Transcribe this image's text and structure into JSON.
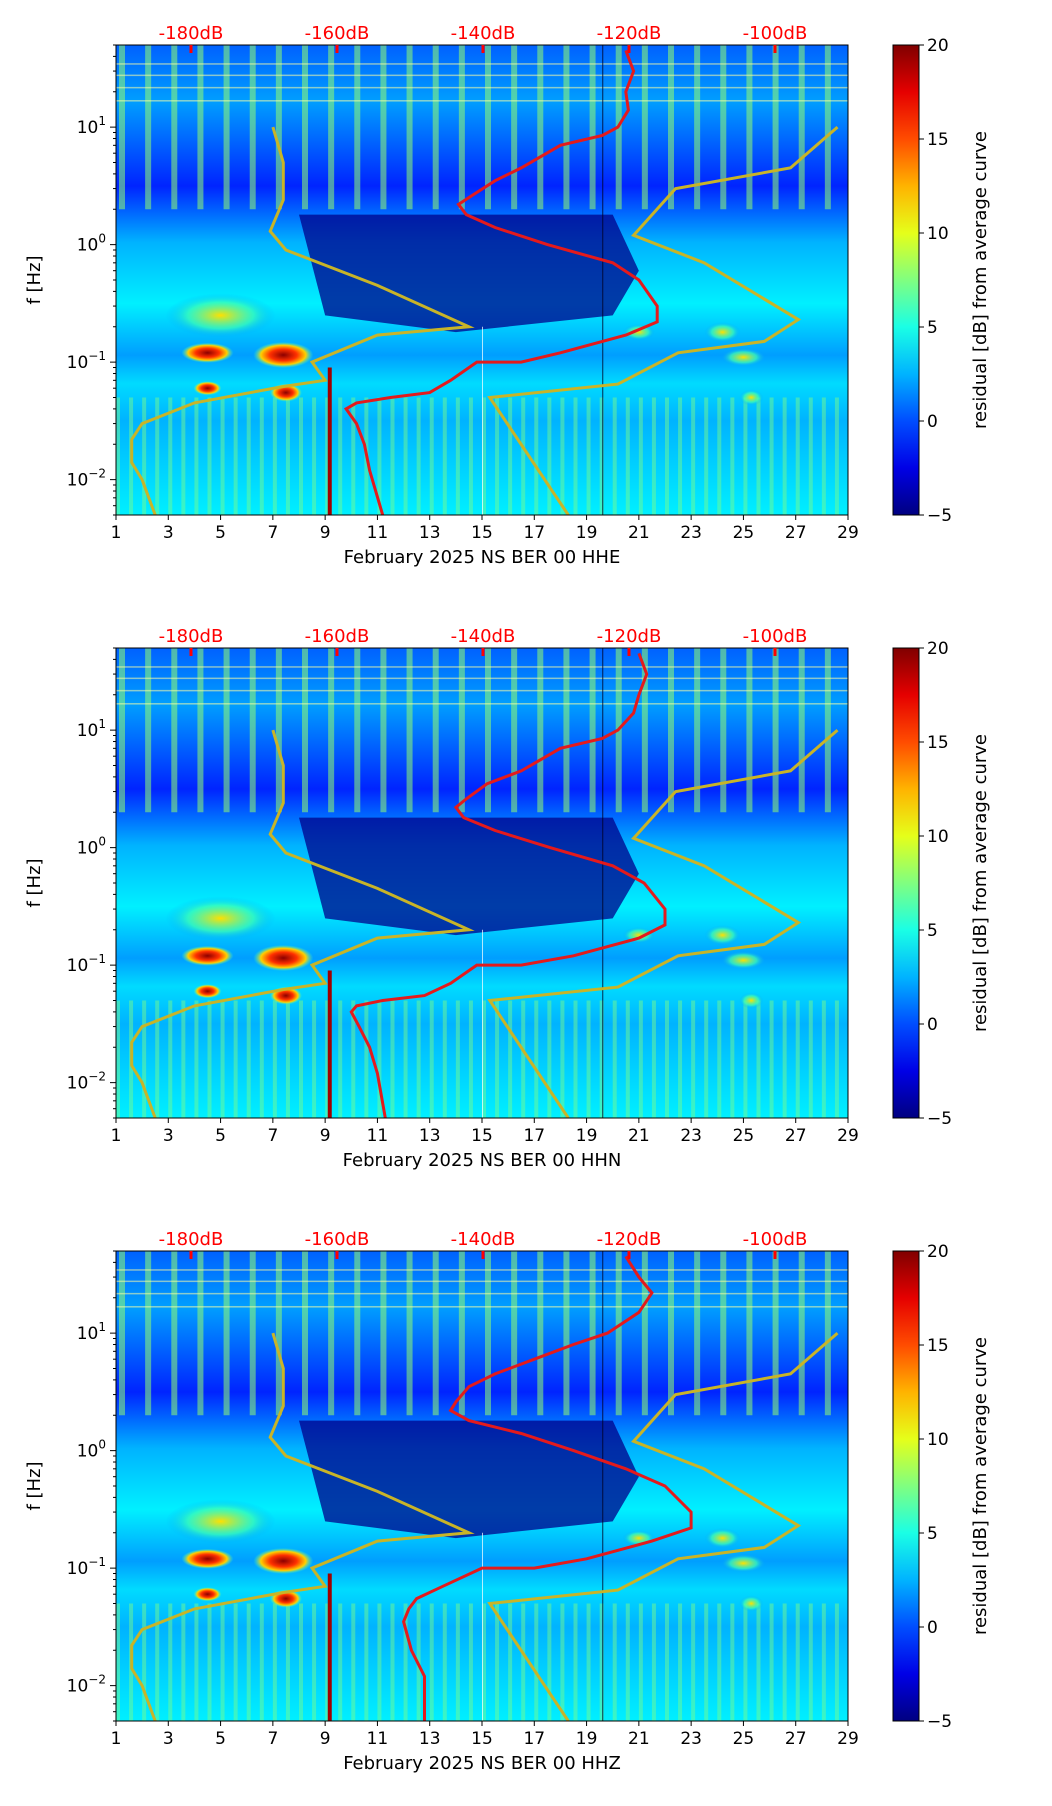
{
  "chart_data": [
    {
      "type": "heatmap",
      "xlabel": "February 2025 NS BER 00 HHE",
      "ylabel": "f [Hz]",
      "x_ticks": [
        "1",
        "3",
        "5",
        "7",
        "9",
        "11",
        "13",
        "15",
        "17",
        "19",
        "21",
        "23",
        "25",
        "27",
        "29"
      ],
      "xlim": [
        1,
        29
      ],
      "ylim": [
        0.005,
        50
      ],
      "yscale": "log",
      "y_ticks": [
        {
          "value": 0.01,
          "base": "10",
          "exp": "−2"
        },
        {
          "value": 0.1,
          "base": "10",
          "exp": "−1"
        },
        {
          "value": 1,
          "base": "10",
          "exp": "0"
        },
        {
          "value": 10,
          "base": "10",
          "exp": "1"
        }
      ],
      "top_ticks": [
        "-180dB",
        "-160dB",
        "-140dB",
        "-120dB",
        "-100dB"
      ],
      "top_ticks_color": "#ff0000",
      "colorbar": {
        "label": "residual [dB] from average curve",
        "range": [
          -5,
          20
        ],
        "ticks": [
          "20",
          "15",
          "10",
          "5",
          "0",
          "−5"
        ],
        "colormap": "jet"
      },
      "noise_model_color": "#c8b428",
      "average_curve_color": "#e41a1c",
      "noise_model_curve": [
        [
          7.0,
          10
        ],
        [
          7.4,
          5
        ],
        [
          7.4,
          2.4
        ],
        [
          6.9,
          1.3
        ],
        [
          7.5,
          0.9
        ],
        [
          11,
          0.45
        ],
        [
          14.5,
          0.2
        ],
        [
          11,
          0.17
        ],
        [
          8.5,
          0.1
        ],
        [
          9,
          0.07
        ],
        [
          7.4,
          0.062
        ],
        [
          4,
          0.045
        ],
        [
          2,
          0.03
        ],
        [
          1.6,
          0.022
        ],
        [
          1.6,
          0.014
        ],
        [
          2,
          0.01
        ],
        [
          2.5,
          0.005
        ]
      ],
      "noise_model_high": [
        [
          28.6,
          10
        ],
        [
          26.8,
          4.5
        ],
        [
          22.4,
          3
        ],
        [
          20.8,
          1.2
        ],
        [
          23.5,
          0.7
        ],
        [
          27.1,
          0.23
        ],
        [
          25.8,
          0.15
        ],
        [
          22.5,
          0.12
        ],
        [
          20.2,
          0.065
        ],
        [
          15.3,
          0.05
        ],
        [
          18.3,
          0.005
        ]
      ],
      "average_curve": [
        [
          20.5,
          45
        ],
        [
          20.8,
          30
        ],
        [
          20.5,
          20
        ],
        [
          20.6,
          14
        ],
        [
          20.2,
          10
        ],
        [
          19.6,
          8.5
        ],
        [
          18,
          7
        ],
        [
          16.5,
          4.5
        ],
        [
          15.5,
          3.5
        ],
        [
          14.6,
          2.6
        ],
        [
          14.1,
          2.2
        ],
        [
          14.4,
          1.8
        ],
        [
          15.5,
          1.4
        ],
        [
          17.5,
          1.0
        ],
        [
          20,
          0.7
        ],
        [
          21,
          0.5
        ],
        [
          21.7,
          0.3
        ],
        [
          21.7,
          0.22
        ],
        [
          20.5,
          0.17
        ],
        [
          18,
          0.12
        ],
        [
          16.5,
          0.1
        ],
        [
          14.8,
          0.1
        ],
        [
          13.8,
          0.07
        ],
        [
          13,
          0.055
        ],
        [
          11.5,
          0.05
        ],
        [
          10.2,
          0.045
        ],
        [
          9.8,
          0.04
        ],
        [
          10.2,
          0.03
        ],
        [
          10.5,
          0.02
        ],
        [
          10.7,
          0.012
        ],
        [
          11.2,
          0.005
        ]
      ]
    },
    {
      "type": "heatmap",
      "xlabel": "February 2025 NS BER 00 HHN",
      "ylabel": "f [Hz]",
      "x_ticks": [
        "1",
        "3",
        "5",
        "7",
        "9",
        "11",
        "13",
        "15",
        "17",
        "19",
        "21",
        "23",
        "25",
        "27",
        "29"
      ],
      "xlim": [
        1,
        29
      ],
      "ylim": [
        0.005,
        50
      ],
      "yscale": "log",
      "y_ticks": [
        {
          "value": 0.01,
          "base": "10",
          "exp": "−2"
        },
        {
          "value": 0.1,
          "base": "10",
          "exp": "−1"
        },
        {
          "value": 1,
          "base": "10",
          "exp": "0"
        },
        {
          "value": 10,
          "base": "10",
          "exp": "1"
        }
      ],
      "top_ticks": [
        "-180dB",
        "-160dB",
        "-140dB",
        "-120dB",
        "-100dB"
      ],
      "top_ticks_color": "#ff0000",
      "colorbar": {
        "label": "residual [dB] from average curve",
        "range": [
          -5,
          20
        ],
        "ticks": [
          "20",
          "15",
          "10",
          "5",
          "0",
          "−5"
        ],
        "colormap": "jet"
      },
      "noise_model_color": "#c8b428",
      "average_curve_color": "#e41a1c",
      "noise_model_curve": [
        [
          7.0,
          10
        ],
        [
          7.4,
          5
        ],
        [
          7.4,
          2.4
        ],
        [
          6.9,
          1.3
        ],
        [
          7.5,
          0.9
        ],
        [
          11,
          0.45
        ],
        [
          14.5,
          0.2
        ],
        [
          11,
          0.17
        ],
        [
          8.5,
          0.1
        ],
        [
          9,
          0.07
        ],
        [
          7.4,
          0.062
        ],
        [
          4,
          0.045
        ],
        [
          2,
          0.03
        ],
        [
          1.6,
          0.022
        ],
        [
          1.6,
          0.014
        ],
        [
          2,
          0.01
        ],
        [
          2.5,
          0.005
        ]
      ],
      "noise_model_high": [
        [
          28.6,
          10
        ],
        [
          26.8,
          4.5
        ],
        [
          22.4,
          3
        ],
        [
          20.8,
          1.2
        ],
        [
          23.5,
          0.7
        ],
        [
          27.1,
          0.23
        ],
        [
          25.8,
          0.15
        ],
        [
          22.5,
          0.12
        ],
        [
          20.2,
          0.065
        ],
        [
          15.3,
          0.05
        ],
        [
          18.3,
          0.005
        ]
      ],
      "average_curve": [
        [
          21,
          45
        ],
        [
          21.3,
          30
        ],
        [
          21,
          20
        ],
        [
          20.8,
          14
        ],
        [
          20.2,
          10
        ],
        [
          19.6,
          8.5
        ],
        [
          18,
          7
        ],
        [
          16.5,
          4.5
        ],
        [
          15.2,
          3.5
        ],
        [
          14.4,
          2.6
        ],
        [
          14,
          2.2
        ],
        [
          14.3,
          1.8
        ],
        [
          15.5,
          1.4
        ],
        [
          17.6,
          1.0
        ],
        [
          20,
          0.7
        ],
        [
          21.2,
          0.5
        ],
        [
          22,
          0.3
        ],
        [
          22,
          0.22
        ],
        [
          21,
          0.17
        ],
        [
          18.5,
          0.12
        ],
        [
          16.5,
          0.1
        ],
        [
          14.8,
          0.1
        ],
        [
          13.8,
          0.07
        ],
        [
          12.8,
          0.055
        ],
        [
          11.2,
          0.05
        ],
        [
          10.2,
          0.045
        ],
        [
          10,
          0.04
        ],
        [
          10.3,
          0.03
        ],
        [
          10.7,
          0.02
        ],
        [
          11,
          0.012
        ],
        [
          11.3,
          0.005
        ]
      ]
    },
    {
      "type": "heatmap",
      "xlabel": "February 2025 NS BER 00 HHZ",
      "ylabel": "f [Hz]",
      "x_ticks": [
        "1",
        "3",
        "5",
        "7",
        "9",
        "11",
        "13",
        "15",
        "17",
        "19",
        "21",
        "23",
        "25",
        "27",
        "29"
      ],
      "xlim": [
        1,
        29
      ],
      "ylim": [
        0.005,
        50
      ],
      "yscale": "log",
      "y_ticks": [
        {
          "value": 0.01,
          "base": "10",
          "exp": "−2"
        },
        {
          "value": 0.1,
          "base": "10",
          "exp": "−1"
        },
        {
          "value": 1,
          "base": "10",
          "exp": "0"
        },
        {
          "value": 10,
          "base": "10",
          "exp": "1"
        }
      ],
      "top_ticks": [
        "-180dB",
        "-160dB",
        "-140dB",
        "-120dB",
        "-100dB"
      ],
      "top_ticks_color": "#ff0000",
      "colorbar": {
        "label": "residual [dB] from average curve",
        "range": [
          -5,
          20
        ],
        "ticks": [
          "20",
          "15",
          "10",
          "5",
          "0",
          "−5"
        ],
        "colormap": "jet"
      },
      "noise_model_color": "#c8b428",
      "average_curve_color": "#e41a1c",
      "noise_model_curve": [
        [
          7.0,
          10
        ],
        [
          7.4,
          5
        ],
        [
          7.4,
          2.4
        ],
        [
          6.9,
          1.3
        ],
        [
          7.5,
          0.9
        ],
        [
          11,
          0.45
        ],
        [
          14.5,
          0.2
        ],
        [
          11,
          0.17
        ],
        [
          8.5,
          0.1
        ],
        [
          9,
          0.07
        ],
        [
          7.4,
          0.062
        ],
        [
          4,
          0.045
        ],
        [
          2,
          0.03
        ],
        [
          1.6,
          0.022
        ],
        [
          1.6,
          0.014
        ],
        [
          2,
          0.01
        ],
        [
          2.5,
          0.005
        ]
      ],
      "noise_model_high": [
        [
          28.6,
          10
        ],
        [
          26.8,
          4.5
        ],
        [
          22.4,
          3
        ],
        [
          20.8,
          1.2
        ],
        [
          23.5,
          0.7
        ],
        [
          27.1,
          0.23
        ],
        [
          25.8,
          0.15
        ],
        [
          22.5,
          0.12
        ],
        [
          20.2,
          0.065
        ],
        [
          15.3,
          0.05
        ],
        [
          18.3,
          0.005
        ]
      ],
      "average_curve": [
        [
          20.5,
          45
        ],
        [
          21,
          30
        ],
        [
          21.5,
          22
        ],
        [
          21,
          15
        ],
        [
          19.8,
          10
        ],
        [
          18.5,
          8
        ],
        [
          17,
          6
        ],
        [
          15.5,
          4.5
        ],
        [
          14.5,
          3.5
        ],
        [
          14,
          2.6
        ],
        [
          13.8,
          2.2
        ],
        [
          14.5,
          1.8
        ],
        [
          16.5,
          1.4
        ],
        [
          18.5,
          1.0
        ],
        [
          20.5,
          0.7
        ],
        [
          22,
          0.5
        ],
        [
          23,
          0.3
        ],
        [
          23,
          0.22
        ],
        [
          21.5,
          0.17
        ],
        [
          19,
          0.12
        ],
        [
          17,
          0.1
        ],
        [
          15,
          0.1
        ],
        [
          13.5,
          0.07
        ],
        [
          12.5,
          0.055
        ],
        [
          12.2,
          0.045
        ],
        [
          12,
          0.035
        ],
        [
          12.3,
          0.02
        ],
        [
          12.8,
          0.012
        ],
        [
          12.8,
          0.005
        ]
      ]
    }
  ]
}
